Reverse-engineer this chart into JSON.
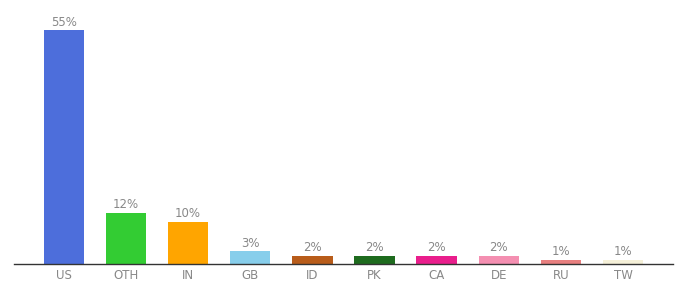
{
  "categories": [
    "US",
    "OTH",
    "IN",
    "GB",
    "ID",
    "PK",
    "CA",
    "DE",
    "RU",
    "TW"
  ],
  "values": [
    55,
    12,
    10,
    3,
    2,
    2,
    2,
    2,
    1,
    1
  ],
  "bar_colors": [
    "#4d6edb",
    "#33cc33",
    "#ffa500",
    "#87ceeb",
    "#b85c1a",
    "#1e6b1e",
    "#e91e8c",
    "#f48fb1",
    "#e88080",
    "#f5f0d8"
  ],
  "title": "",
  "ylim": [
    0,
    60
  ],
  "background_color": "#ffffff",
  "label_fontsize": 8.5,
  "tick_fontsize": 8.5,
  "label_color": "#888888",
  "tick_color": "#888888"
}
